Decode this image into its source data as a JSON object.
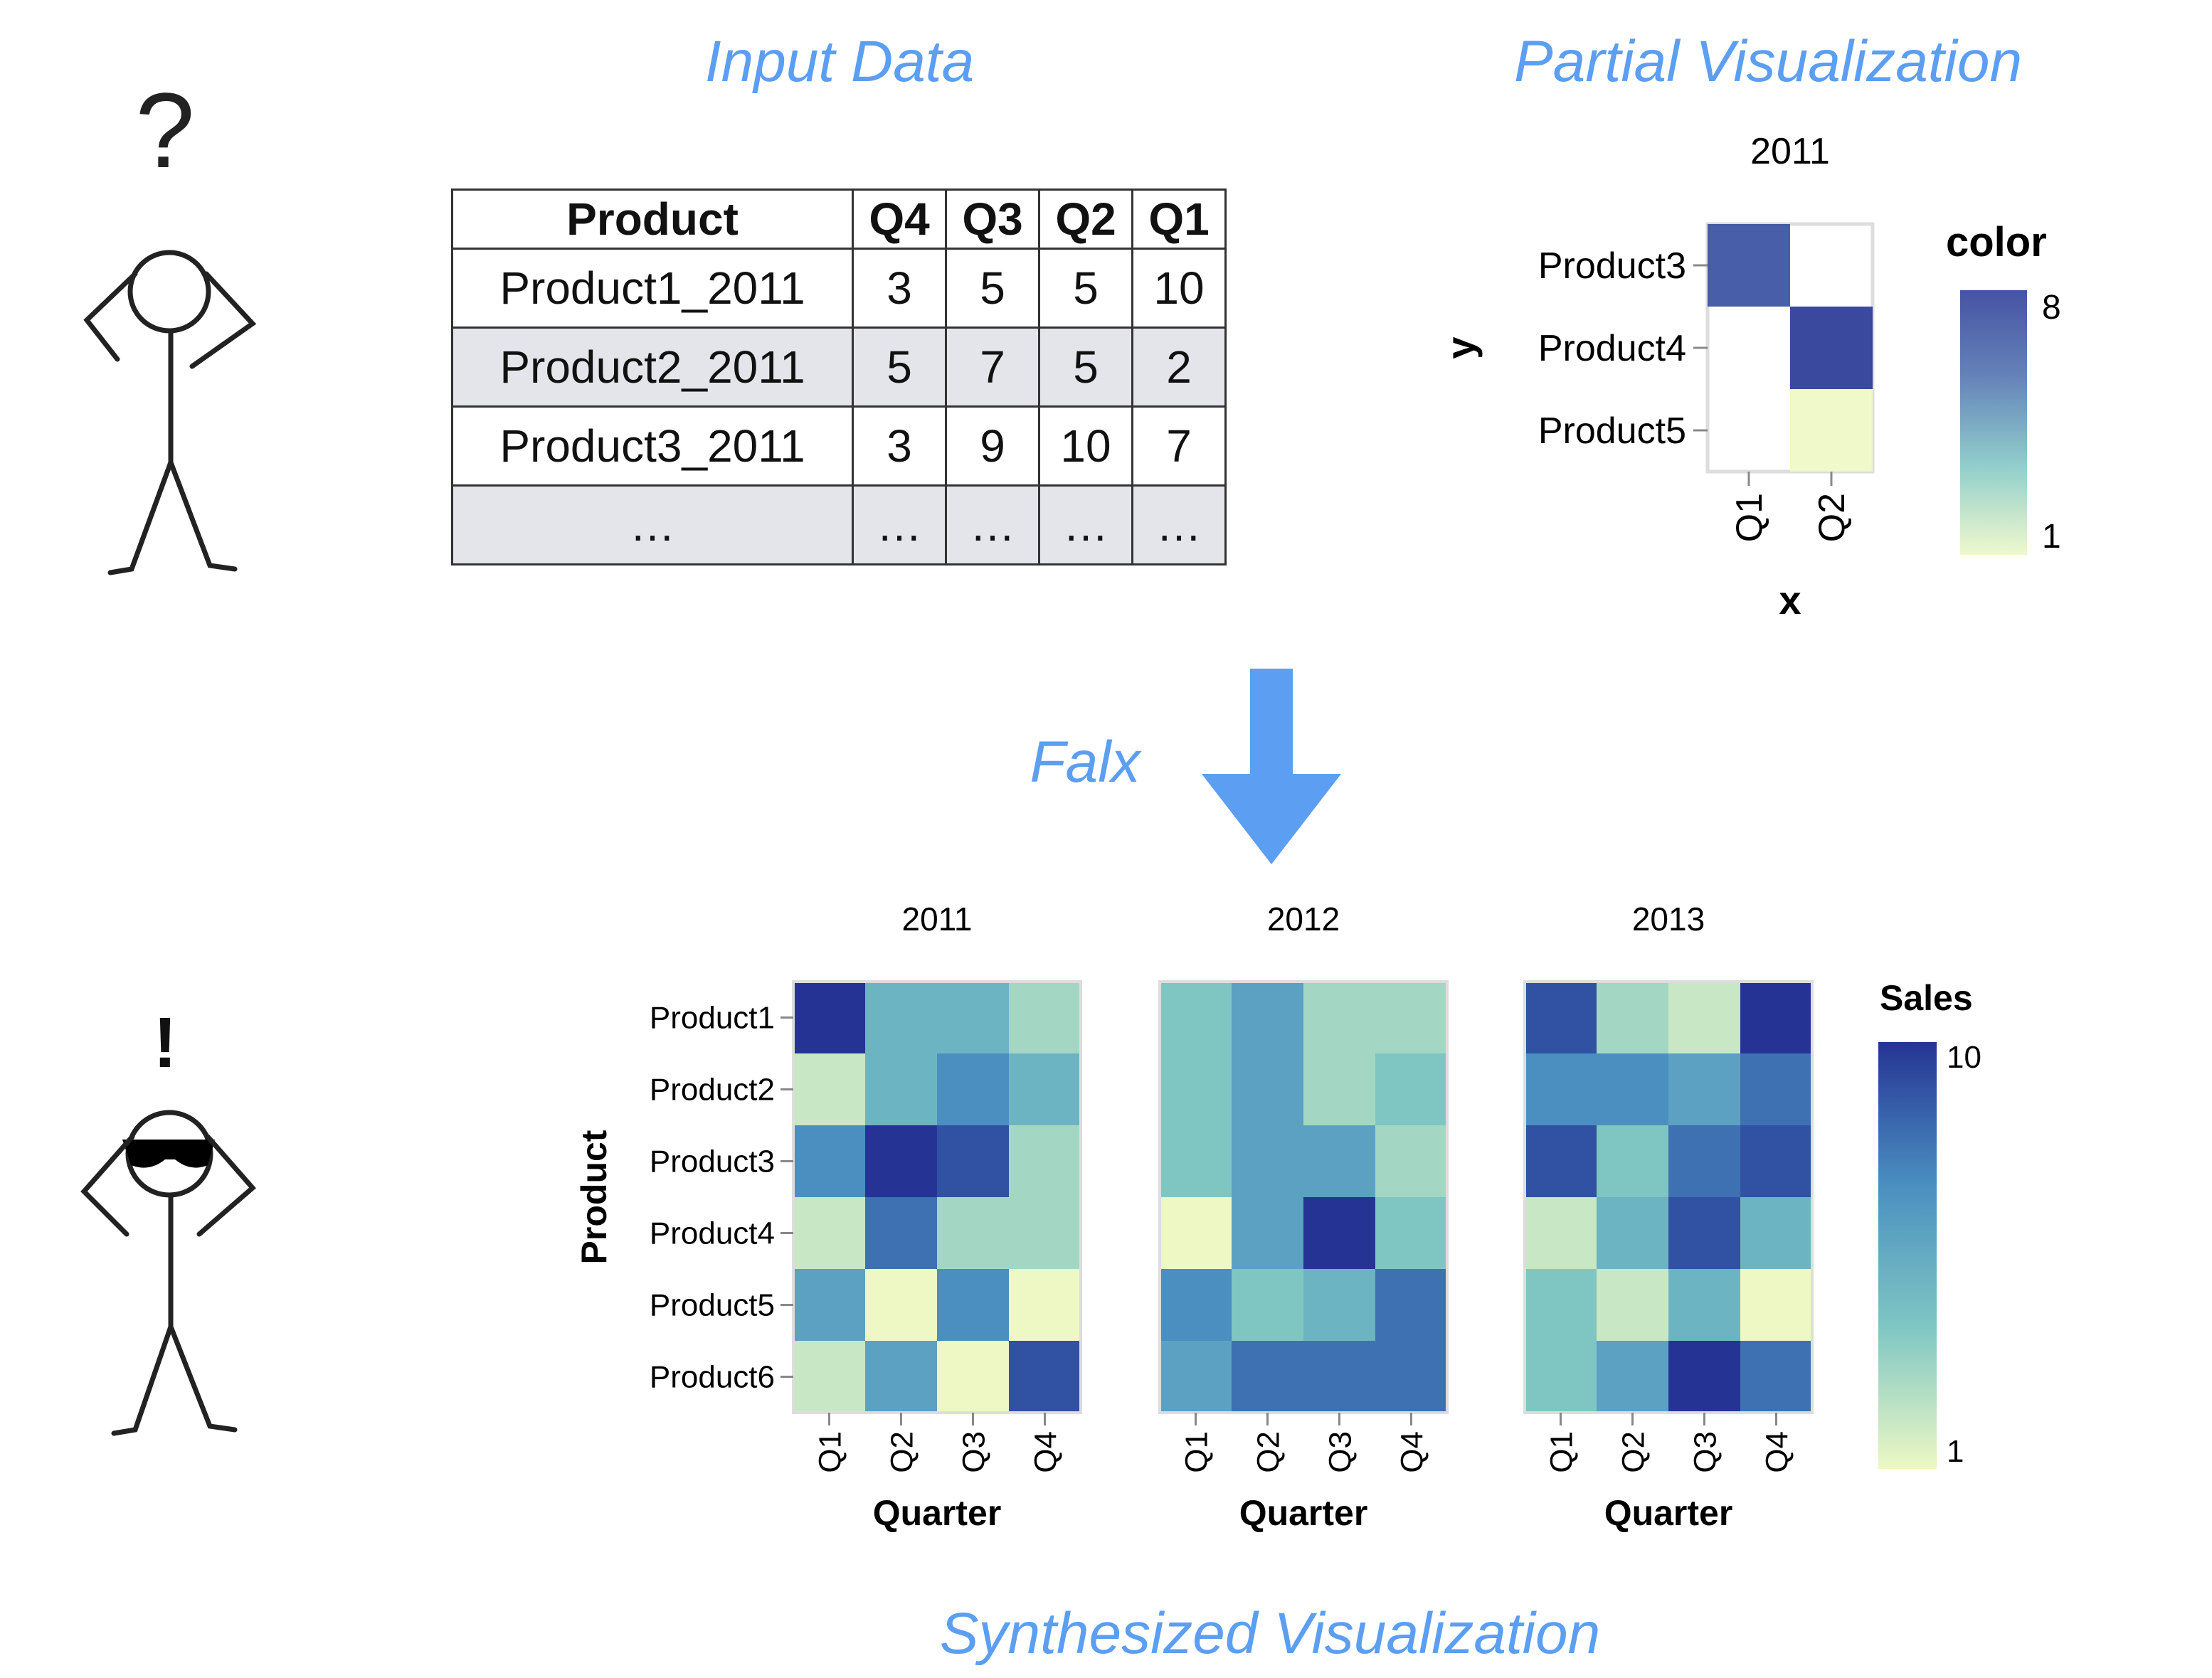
{
  "titles": {
    "input": "Input Data",
    "partial": "Partial Visualization",
    "falx": "Falx",
    "synthesized": "Synthesized Visualization"
  },
  "figures": {
    "confused_mark": "?",
    "happy_mark": "!"
  },
  "input_table": {
    "headers": [
      "Product",
      "Q4",
      "Q3",
      "Q2",
      "Q1"
    ],
    "rows": [
      [
        "Product1_2011",
        "3",
        "5",
        "5",
        "10"
      ],
      [
        "Product2_2011",
        "5",
        "7",
        "5",
        "2"
      ],
      [
        "Product3_2011",
        "3",
        "9",
        "10",
        "7"
      ],
      [
        "…",
        "…",
        "…",
        "…",
        "…"
      ]
    ]
  },
  "chart_data": [
    {
      "type": "heatmap",
      "title": "2011",
      "xlabel": "x",
      "ylabel": "y",
      "x": [
        "Q1",
        "Q2"
      ],
      "y": [
        "Product3",
        "Product4",
        "Product5"
      ],
      "cells": [
        {
          "x": "Q1",
          "y": "Product3",
          "value": 7
        },
        {
          "x": "Q2",
          "y": "Product4",
          "value": 8
        },
        {
          "x": "Q2",
          "y": "Product5",
          "value": 1
        }
      ],
      "legend": {
        "title": "color",
        "min": 1,
        "max": 8,
        "placement": "right"
      },
      "color_scale": [
        "#edf8c4",
        "#7fc6c3",
        "#4a6fad",
        "#253494"
      ]
    },
    {
      "type": "heatmap",
      "facet_by": "year",
      "xlabel": "Quarter",
      "ylabel": "Product",
      "x": [
        "Q1",
        "Q2",
        "Q3",
        "Q4"
      ],
      "y": [
        "Product1",
        "Product2",
        "Product3",
        "Product4",
        "Product5",
        "Product6"
      ],
      "facets": [
        {
          "title": "2011",
          "values": [
            [
              10,
              5,
              5,
              3
            ],
            [
              2,
              5,
              7,
              5
            ],
            [
              7,
              10,
              9,
              3
            ],
            [
              2,
              8,
              3,
              3
            ],
            [
              6,
              1,
              7,
              1
            ],
            [
              2,
              6,
              1,
              9
            ]
          ]
        },
        {
          "title": "2012",
          "values": [
            [
              4,
              6,
              3,
              3
            ],
            [
              4,
              6,
              3,
              4
            ],
            [
              4,
              6,
              6,
              3
            ],
            [
              1,
              6,
              10,
              4
            ],
            [
              7,
              4,
              5,
              8
            ],
            [
              6,
              8,
              8,
              8
            ]
          ]
        },
        {
          "title": "2013",
          "values": [
            [
              9,
              3,
              2,
              10
            ],
            [
              7,
              7,
              6,
              8
            ],
            [
              9,
              4,
              8,
              9
            ],
            [
              2,
              5,
              9,
              5
            ],
            [
              4,
              2,
              5,
              1
            ],
            [
              4,
              6,
              10,
              8
            ]
          ]
        }
      ],
      "legend": {
        "title": "Sales",
        "min": 1,
        "max": 10,
        "placement": "right"
      },
      "color_scale": [
        "#edf8c4",
        "#7fc6c3",
        "#4a8fc0",
        "#253494"
      ]
    }
  ]
}
